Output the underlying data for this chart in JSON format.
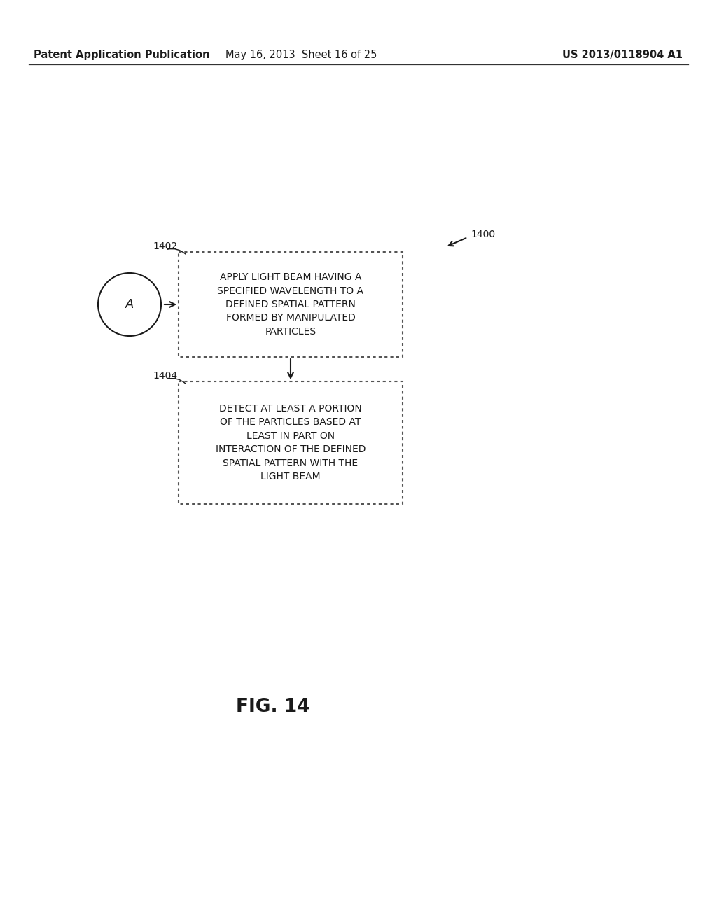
{
  "bg_color": "#ffffff",
  "header_left": "Patent Application Publication",
  "header_mid": "May 16, 2013  Sheet 16 of 25",
  "header_right": "US 2013/0118904 A1",
  "figure_label": "FIG. 14",
  "diagram_label": "1400",
  "box1_label": "1402",
  "box2_label": "1404",
  "box1_text": "APPLY LIGHT BEAM HAVING A\nSPECIFIED WAVELENGTH TO A\nDEFINED SPATIAL PATTERN\nFORMED BY MANIPULATED\nPARTICLES",
  "box2_text": "DETECT AT LEAST A PORTION\nOF THE PARTICLES BASED AT\nLEAST IN PART ON\nINTERACTION OF THE DEFINED\nSPATIAL PATTERN WITH THE\nLIGHT BEAM",
  "circle_text": "A",
  "text_color": "#1a1a1a",
  "box_edge_color": "#555555",
  "arrow_color": "#1a1a1a"
}
